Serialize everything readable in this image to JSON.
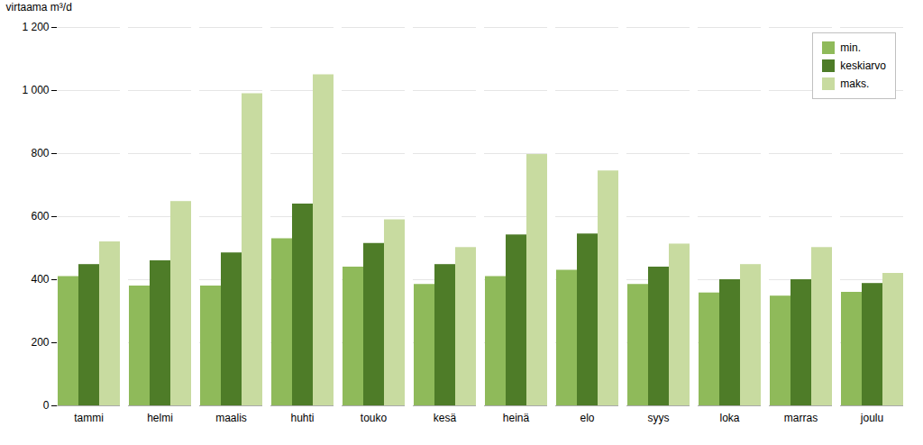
{
  "chart_data": {
    "type": "bar",
    "categories": [
      "tammi",
      "helmi",
      "maalis",
      "huhti",
      "touko",
      "kesä",
      "heinä",
      "elo",
      "syys",
      "loka",
      "marras",
      "joulu"
    ],
    "series": [
      {
        "name": "min.",
        "color": "#8fba5a",
        "values": [
          410,
          380,
          380,
          530,
          440,
          385,
          410,
          430,
          385,
          358,
          348,
          360
        ]
      },
      {
        "name": "keskiarvo",
        "color": "#4e7c28",
        "values": [
          448,
          460,
          485,
          640,
          515,
          448,
          542,
          545,
          440,
          400,
          400,
          388
        ]
      },
      {
        "name": "maks.",
        "color": "#c8dba0",
        "values": [
          520,
          648,
          990,
          1050,
          590,
          502,
          797,
          745,
          513,
          448,
          502,
          420
        ]
      }
    ],
    "ylabel": "virtaama m³/d",
    "ylim": [
      0,
      1200
    ],
    "yticks": [
      0,
      200,
      400,
      600,
      800,
      {
        "value": 1000,
        "label": "1 000"
      },
      {
        "value": 1200,
        "label": "1 200"
      }
    ],
    "grid": true,
    "legend": "upper right"
  }
}
